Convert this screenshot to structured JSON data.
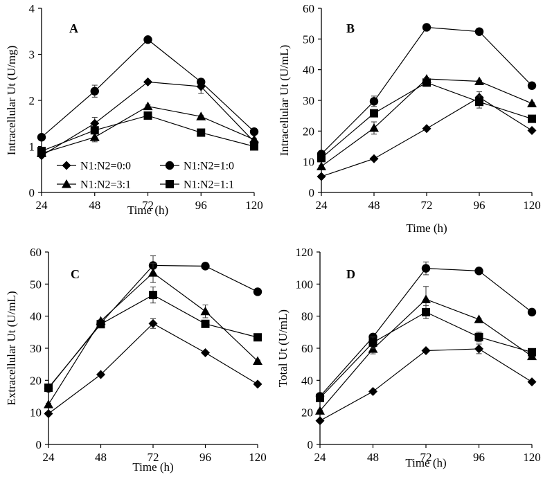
{
  "chart_data": [
    {
      "type": "line",
      "panel_label": "A",
      "xlabel": "Time (h)",
      "ylabel": "Intracellular Ut (U/mg)",
      "x": [
        24,
        48,
        72,
        96,
        120
      ],
      "xticks": [
        "24",
        "48",
        "72",
        "96",
        "120"
      ],
      "ylim": [
        0,
        4
      ],
      "yticks": [
        "0",
        "1",
        "2",
        "3",
        "4"
      ],
      "legend_position": "bottom-left",
      "series": [
        {
          "name": "N1:N2=0:0",
          "marker": "diamond",
          "values": [
            0.8,
            1.5,
            2.4,
            2.3,
            1.1
          ],
          "errors": [
            0.02,
            0.13,
            0.02,
            0.15,
            0.03
          ]
        },
        {
          "name": "N1:N2=1:0",
          "marker": "circle",
          "values": [
            1.2,
            2.2,
            3.32,
            2.4,
            1.32
          ],
          "errors": [
            0.02,
            0.13,
            0.02,
            0.05,
            0.03
          ]
        },
        {
          "name": "N1:N2=3:1",
          "marker": "triangle",
          "values": [
            0.85,
            1.2,
            1.87,
            1.65,
            1.15
          ],
          "errors": [
            0.02,
            0.1,
            0.03,
            0.02,
            0.03
          ]
        },
        {
          "name": "N1:N2=1:1",
          "marker": "square",
          "values": [
            0.9,
            1.35,
            1.67,
            1.3,
            1.0
          ],
          "errors": [
            0.02,
            0.08,
            0.05,
            0.02,
            0.03
          ]
        }
      ]
    },
    {
      "type": "line",
      "panel_label": "B",
      "xlabel": "Time (h)",
      "ylabel": "Intracellular Ut (U/mL)",
      "x": [
        24,
        48,
        72,
        96,
        120
      ],
      "xticks": [
        "24",
        "48",
        "72",
        "96",
        "120"
      ],
      "ylim": [
        0,
        60
      ],
      "yticks": [
        "0",
        "10",
        "20",
        "30",
        "40",
        "50",
        "60"
      ],
      "series": [
        {
          "name": "N1:N2=0:0",
          "marker": "diamond",
          "values": [
            5.2,
            11.0,
            20.8,
            31.0,
            20.2
          ],
          "errors": [
            0.3,
            0.3,
            0.3,
            1.8,
            0.5
          ]
        },
        {
          "name": "N1:N2=1:0",
          "marker": "circle",
          "values": [
            12.5,
            29.7,
            53.8,
            52.4,
            34.8
          ],
          "errors": [
            0.3,
            1.7,
            0.3,
            0.3,
            0.3
          ]
        },
        {
          "name": "N1:N2=3:1",
          "marker": "triangle",
          "values": [
            8.5,
            21.0,
            37.0,
            36.2,
            29.0
          ],
          "errors": [
            0.3,
            2.0,
            0.5,
            0.3,
            0.3
          ]
        },
        {
          "name": "N1:N2=1:1",
          "marker": "square",
          "values": [
            11.2,
            25.8,
            35.8,
            29.5,
            24.0
          ],
          "errors": [
            0.3,
            1.2,
            0.5,
            2.0,
            0.3
          ]
        }
      ]
    },
    {
      "type": "line",
      "panel_label": "C",
      "xlabel": "Time (h)",
      "ylabel": "Extracellular Ut (U/mL)",
      "x": [
        24,
        48,
        72,
        96,
        120
      ],
      "xticks": [
        "24",
        "48",
        "72",
        "96",
        "120"
      ],
      "ylim": [
        0,
        60
      ],
      "yticks": [
        "0",
        "10",
        "20",
        "30",
        "40",
        "50",
        "60"
      ],
      "series": [
        {
          "name": "N1:N2=0:0",
          "marker": "diamond",
          "values": [
            9.6,
            21.8,
            37.7,
            28.6,
            18.8
          ],
          "errors": [
            0.3,
            0.3,
            1.5,
            0.3,
            0.3
          ]
        },
        {
          "name": "N1:N2=1:0",
          "marker": "circle",
          "values": [
            17.5,
            37.8,
            55.8,
            55.6,
            47.6
          ],
          "errors": [
            0.3,
            0.3,
            3.0,
            0.3,
            0.3
          ]
        },
        {
          "name": "N1:N2=3:1",
          "marker": "triangle",
          "values": [
            12.5,
            38.5,
            53.5,
            41.5,
            26.0
          ],
          "errors": [
            0.3,
            0.3,
            3.0,
            2.0,
            0.3
          ]
        },
        {
          "name": "N1:N2=1:1",
          "marker": "square",
          "values": [
            17.7,
            37.5,
            46.6,
            37.6,
            33.4
          ],
          "errors": [
            0.3,
            0.3,
            2.5,
            0.3,
            0.3
          ]
        }
      ]
    },
    {
      "type": "line",
      "panel_label": "D",
      "xlabel": "Time (h)",
      "ylabel": "Total Ut (U/mL)",
      "x": [
        24,
        48,
        72,
        96,
        120
      ],
      "xticks": [
        "24",
        "48",
        "72",
        "96",
        "120"
      ],
      "ylim": [
        0,
        120
      ],
      "yticks": [
        "0",
        "20",
        "40",
        "60",
        "80",
        "100",
        "120"
      ],
      "series": [
        {
          "name": "N1:N2=0:0",
          "marker": "diamond",
          "values": [
            14.8,
            33.0,
            58.5,
            59.6,
            39.0
          ],
          "errors": [
            0.5,
            0.5,
            0.5,
            3.0,
            0.5
          ]
        },
        {
          "name": "N1:N2=1:0",
          "marker": "circle",
          "values": [
            30.0,
            67.0,
            109.8,
            108.2,
            82.5
          ],
          "errors": [
            0.5,
            0.5,
            4.0,
            0.5,
            0.5
          ]
        },
        {
          "name": "N1:N2=3:1",
          "marker": "triangle",
          "values": [
            21.0,
            59.5,
            90.5,
            78.0,
            55.0
          ],
          "errors": [
            0.5,
            3.0,
            8.0,
            0.5,
            0.5
          ]
        },
        {
          "name": "N1:N2=1:1",
          "marker": "square",
          "values": [
            29.0,
            63.5,
            82.5,
            67.0,
            57.5
          ],
          "errors": [
            0.5,
            3.5,
            4.0,
            3.0,
            0.5
          ]
        }
      ]
    }
  ]
}
